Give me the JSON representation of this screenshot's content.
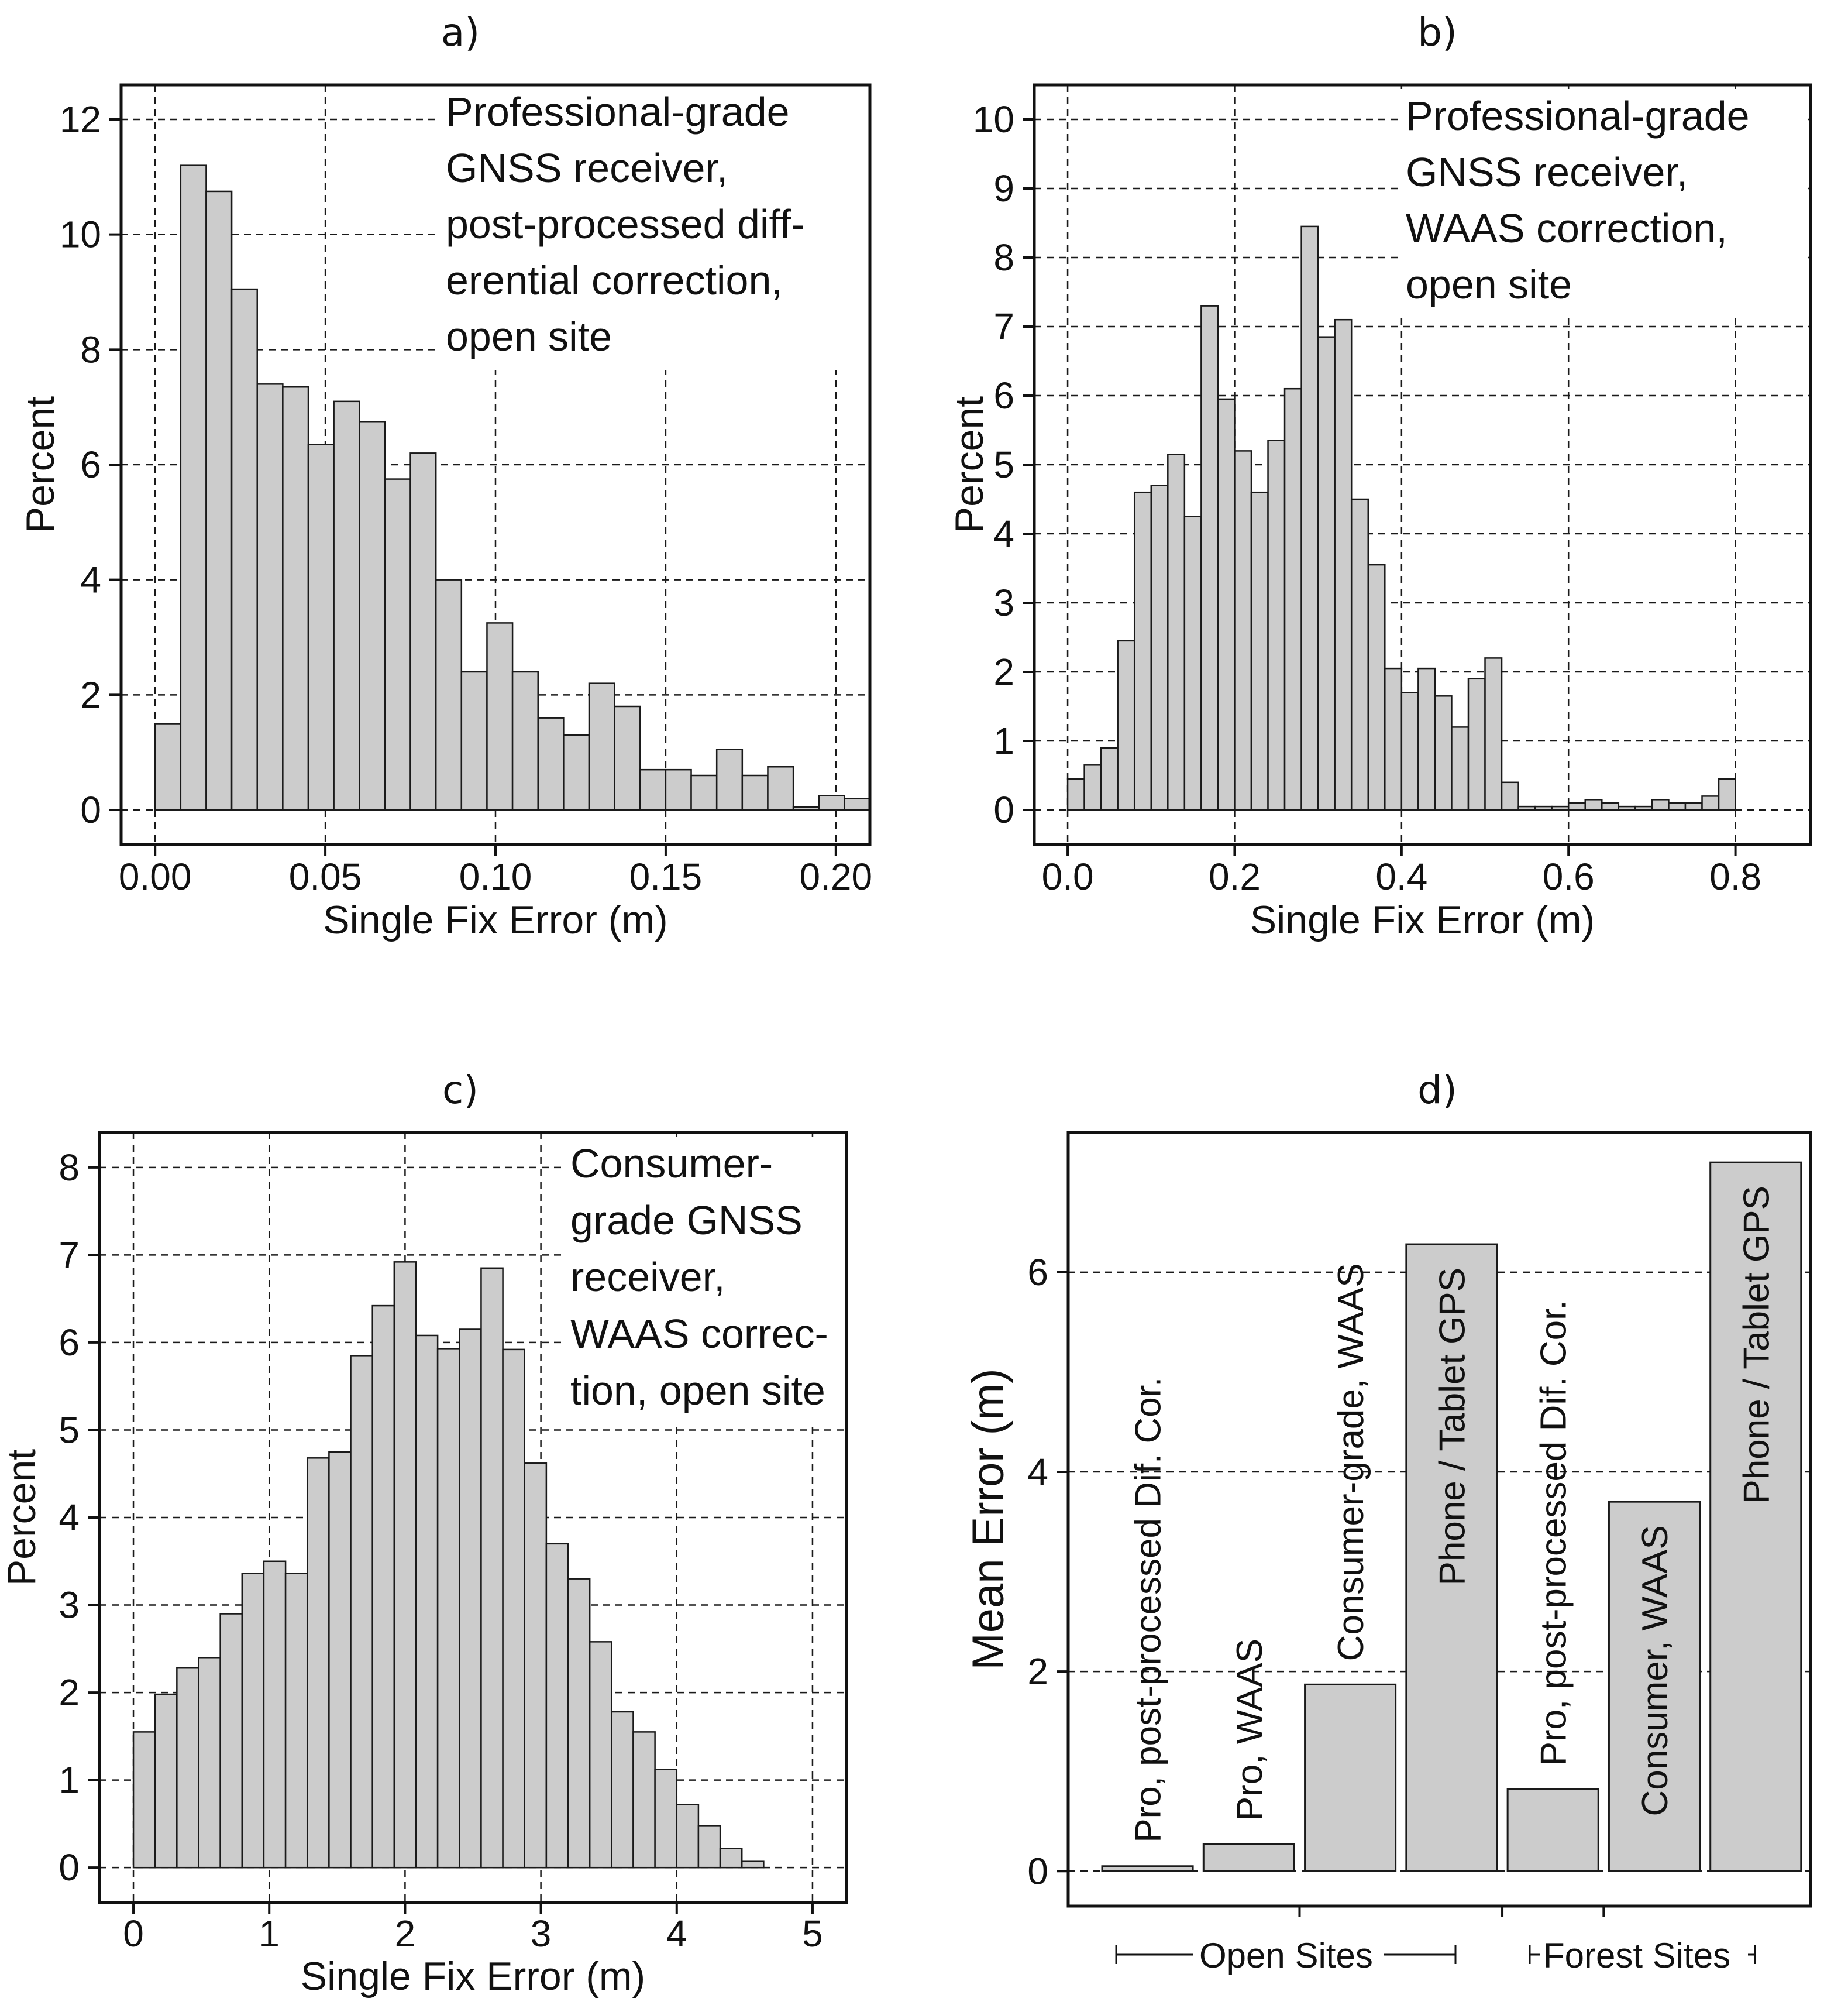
{
  "colors": {
    "bar_fill": "#cccccc",
    "bar_stroke": "#1a1a1a",
    "grid": "#1a1a1a",
    "frame": "#111111",
    "text": "#111111"
  },
  "chart_data": [
    {
      "id": "a",
      "panel_label": "a)",
      "type": "bar",
      "subtype": "histogram",
      "title": "",
      "xlabel": "Single Fix Error (m)",
      "ylabel": "Percent",
      "xlim": [
        -0.01,
        0.21
      ],
      "ylim": [
        -0.6,
        12.6
      ],
      "xticks": [
        0.0,
        0.05,
        0.1,
        0.15,
        0.2
      ],
      "xtick_labels": [
        "0.00",
        "0.05",
        "0.10",
        "0.15",
        "0.20"
      ],
      "yticks": [
        0,
        2,
        4,
        6,
        8,
        10,
        12
      ],
      "ytick_labels": [
        "0",
        "2",
        "4",
        "6",
        "8",
        "10",
        "12"
      ],
      "grid": true,
      "annotation_lines": [
        "Professional-grade",
        "GNSS receiver,",
        "post-processed diff-",
        "erential correction,",
        "open site"
      ],
      "bin_start": 0.0,
      "bin_width": 0.0075,
      "values": [
        1.5,
        11.2,
        10.75,
        9.05,
        7.4,
        7.35,
        6.35,
        7.1,
        6.75,
        5.75,
        6.2,
        4.0,
        2.4,
        3.25,
        2.4,
        1.6,
        1.3,
        2.2,
        1.8,
        0.7,
        0.7,
        0.6,
        1.05,
        0.6,
        0.75,
        0.05,
        0.25,
        0.2
      ]
    },
    {
      "id": "b",
      "panel_label": "b)",
      "type": "bar",
      "subtype": "histogram",
      "title": "",
      "xlabel": "Single Fix Error (m)",
      "ylabel": "Percent",
      "xlim": [
        -0.04,
        0.89
      ],
      "ylim": [
        -0.5,
        10.5
      ],
      "xticks": [
        0.0,
        0.2,
        0.4,
        0.6,
        0.8
      ],
      "xtick_labels": [
        "0.0",
        "0.2",
        "0.4",
        "0.6",
        "0.8"
      ],
      "yticks": [
        0,
        1,
        2,
        3,
        4,
        5,
        6,
        7,
        8,
        9,
        10
      ],
      "ytick_labels": [
        "0",
        "1",
        "2",
        "3",
        "4",
        "5",
        "6",
        "7",
        "8",
        "9",
        "10"
      ],
      "grid": true,
      "annotation_lines": [
        "Professional-grade",
        "GNSS receiver,",
        "WAAS correction,",
        "open site"
      ],
      "bin_start": 0.0,
      "bin_width": 0.02,
      "values": [
        0.45,
        0.65,
        0.9,
        2.45,
        4.6,
        4.7,
        5.15,
        4.25,
        7.3,
        5.95,
        5.2,
        4.6,
        5.35,
        6.1,
        8.45,
        6.85,
        7.1,
        4.5,
        3.55,
        2.05,
        1.7,
        2.05,
        1.65,
        1.2,
        1.9,
        2.2,
        0.4,
        0.05,
        0.05,
        0.05,
        0.1,
        0.15,
        0.1,
        0.05,
        0.05,
        0.15,
        0.1,
        0.1,
        0.2,
        0.45
      ]
    },
    {
      "id": "c",
      "panel_label": "c)",
      "type": "bar",
      "subtype": "histogram",
      "title": "",
      "xlabel": "Single Fix Error (m)",
      "ylabel": "Percent",
      "xlim": [
        -0.25,
        5.25
      ],
      "ylim": [
        -0.4,
        8.4
      ],
      "xticks": [
        0,
        1,
        2,
        3,
        4,
        5
      ],
      "xtick_labels": [
        "0",
        "1",
        "2",
        "3",
        "4",
        "5"
      ],
      "yticks": [
        0,
        1,
        2,
        3,
        4,
        5,
        6,
        7,
        8
      ],
      "ytick_labels": [
        "0",
        "1",
        "2",
        "3",
        "4",
        "5",
        "6",
        "7",
        "8"
      ],
      "grid": true,
      "annotation_lines": [
        "Consumer-",
        "grade GNSS",
        "receiver,",
        "WAAS correc-",
        "tion, open site"
      ],
      "bin_start": 0.0,
      "bin_width": 0.16,
      "values": [
        1.55,
        1.98,
        2.28,
        2.4,
        2.9,
        3.36,
        3.5,
        3.36,
        4.68,
        4.75,
        5.85,
        6.42,
        6.92,
        6.08,
        5.93,
        6.15,
        6.85,
        5.92,
        4.62,
        3.7,
        3.3,
        2.58,
        1.78,
        1.55,
        1.12,
        0.72,
        0.48,
        0.22,
        0.07
      ]
    },
    {
      "id": "d",
      "panel_label": "d)",
      "type": "bar",
      "title": "",
      "xlabel": "",
      "ylabel": "Mean Error (m)",
      "ylim": [
        -0.35,
        7.4
      ],
      "yticks": [
        0,
        2,
        4,
        6
      ],
      "ytick_labels": [
        "0",
        "2",
        "4",
        "6"
      ],
      "grid": true,
      "categories": [
        "Pro, post-processed Dif. Cor.",
        "Pro, WAAS",
        "Consumer-grade, WAAS",
        "Phone / Tablet GPS",
        "Pro, post-processed Dif. Cor.",
        "Consumer, WAAS",
        "Phone / Tablet GPS"
      ],
      "values": [
        0.05,
        0.27,
        1.87,
        6.28,
        0.82,
        3.7,
        7.1
      ],
      "groups": [
        {
          "label": "Open Sites",
          "members": [
            0,
            1,
            2,
            3
          ]
        },
        {
          "label": "Forest Sites",
          "members": [
            4,
            5,
            6
          ]
        }
      ]
    }
  ]
}
